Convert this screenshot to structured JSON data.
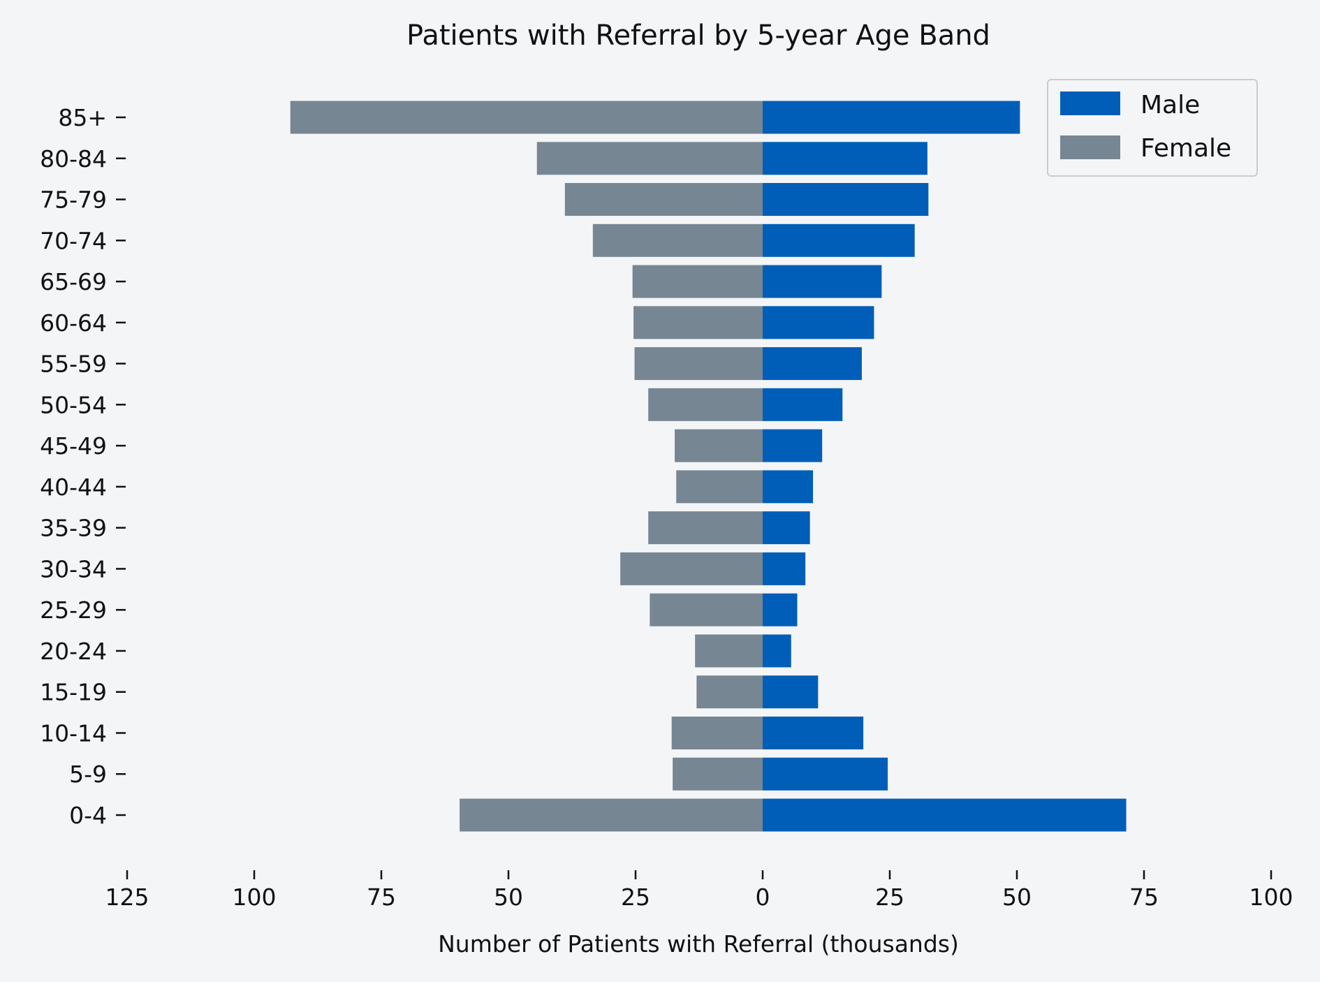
{
  "chart_data": {
    "type": "bar",
    "orientation": "horizontal-diverging",
    "title": "Patients with Referral by 5-year Age Band",
    "xlabel": "Number of Patients with Referral (thousands)",
    "ylabel": "",
    "categories": [
      "0-4",
      "5-9",
      "10-14",
      "15-19",
      "20-24",
      "25-29",
      "30-34",
      "35-39",
      "40-44",
      "45-49",
      "50-54",
      "55-59",
      "60-64",
      "65-69",
      "70-74",
      "75-79",
      "80-84",
      "85+"
    ],
    "series": [
      {
        "name": "Male",
        "color": "#005eb8",
        "values": [
          71.5,
          24.6,
          19.8,
          10.9,
          5.6,
          6.8,
          8.4,
          9.3,
          9.9,
          11.7,
          15.7,
          19.5,
          21.9,
          23.4,
          29.9,
          32.6,
          32.4,
          50.6
        ]
      },
      {
        "name": "Female",
        "color": "#768692",
        "values": [
          59.6,
          17.7,
          17.9,
          13.0,
          13.3,
          22.2,
          28.0,
          22.5,
          17.0,
          17.3,
          22.5,
          25.2,
          25.4,
          25.6,
          33.4,
          38.9,
          44.4,
          92.9
        ]
      }
    ],
    "xlim": [
      -125,
      100
    ],
    "xticks": [
      -125,
      -100,
      -75,
      -50,
      -25,
      0,
      25,
      50,
      75,
      100
    ],
    "xtick_labels": [
      "125",
      "100",
      "75",
      "50",
      "25",
      "0",
      "25",
      "50",
      "75",
      "100"
    ],
    "grid": false,
    "legend_position": "top-right"
  }
}
